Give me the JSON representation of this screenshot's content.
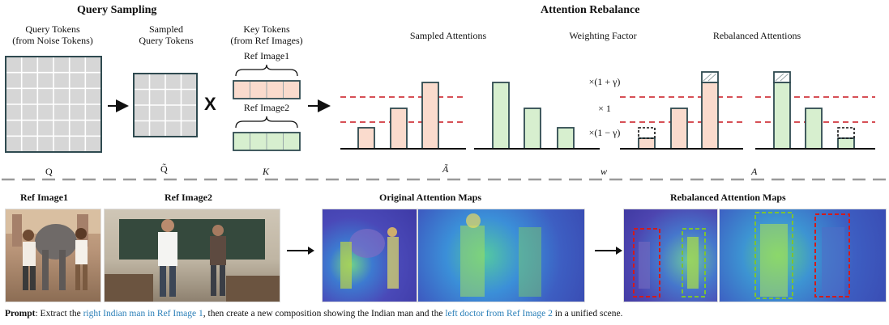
{
  "sections": {
    "query_sampling": "Query Sampling",
    "attention_rebalance": "Attention Rebalance"
  },
  "labels": {
    "query_tokens_l1": "Query Tokens",
    "query_tokens_l2": "(from Noise Tokens)",
    "sampled_l1": "Sampled",
    "sampled_l2": "Query Tokens",
    "key_l1": "Key Tokens",
    "key_l2": "(from Ref Images)",
    "ref_image1": "Ref Image1",
    "ref_image2": "Ref Image2",
    "multiply": "X",
    "sampled_attentions": "Sampled Attentions",
    "weighting_factor": "Weighting Factor",
    "rebalanced_attentions": "Rebalanced Attentions",
    "w_up": "×(1 + γ)",
    "w_one": "× 1",
    "w_down": "×(1 − γ)"
  },
  "symbols": {
    "q": "Q",
    "q_tilde": "Q̃",
    "k": "K",
    "a_tilde": "Ã",
    "w": "w",
    "a": "A"
  },
  "bottom": {
    "ref_image1": "Ref Image1",
    "ref_image2": "Ref Image2",
    "original_maps": "Original Attention Maps",
    "rebalanced_maps": "Rebalanced Attention Maps"
  },
  "prompt": {
    "label": "Prompt",
    "t1": ": Extract the ",
    "h1": "right Indian man in Ref Image 1",
    "t2": ", then create a new composition showing the Indian man and the ",
    "h2": "left doctor from Ref Image 2",
    "t3": " in a unified scene."
  },
  "colors": {
    "grid_fill": "#d6d6d6",
    "grid_border": "#2f4a50",
    "pink": "#fadbcd",
    "green": "#d7efcf",
    "red_dash": "#c8161e"
  }
}
